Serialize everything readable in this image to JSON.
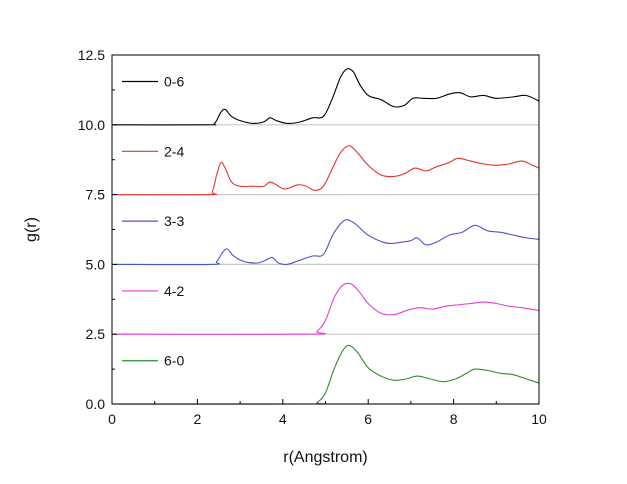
{
  "chart_data": {
    "type": "line",
    "title": "",
    "xlabel": "r(Angstrom)",
    "ylabel": "g(r)",
    "xlim": [
      0,
      10
    ],
    "ylim": [
      0,
      12.5
    ],
    "xticks": [
      0,
      2,
      4,
      6,
      8,
      10
    ],
    "xtick_labels": [
      "0",
      "2",
      "4",
      "6",
      "8",
      "10"
    ],
    "yticks": [
      0,
      2.5,
      5,
      7.5,
      10,
      12.5
    ],
    "ytick_labels": [
      "0.0",
      "2.5",
      "5.0",
      "7.5",
      "10.0",
      "12.5"
    ],
    "grid": false,
    "baselines": [
      10.0,
      7.5,
      5.0,
      2.5,
      0.0
    ],
    "baseline_color": "#c8c8c8",
    "legend_placement": "left, next to each curve",
    "series": [
      {
        "name": "0-6",
        "color": "#000000",
        "points": [
          [
            0,
            10.0
          ],
          [
            2.2,
            10.0
          ],
          [
            2.4,
            10.05
          ],
          [
            2.55,
            10.45
          ],
          [
            2.65,
            10.55
          ],
          [
            2.8,
            10.3
          ],
          [
            3.0,
            10.15
          ],
          [
            3.3,
            10.05
          ],
          [
            3.55,
            10.1
          ],
          [
            3.7,
            10.25
          ],
          [
            3.85,
            10.15
          ],
          [
            4.1,
            10.05
          ],
          [
            4.4,
            10.1
          ],
          [
            4.7,
            10.25
          ],
          [
            4.95,
            10.3
          ],
          [
            5.15,
            10.9
          ],
          [
            5.35,
            11.7
          ],
          [
            5.5,
            12.0
          ],
          [
            5.65,
            11.9
          ],
          [
            5.8,
            11.45
          ],
          [
            6.0,
            11.05
          ],
          [
            6.3,
            10.9
          ],
          [
            6.6,
            10.65
          ],
          [
            6.85,
            10.7
          ],
          [
            7.05,
            10.95
          ],
          [
            7.3,
            10.95
          ],
          [
            7.6,
            10.95
          ],
          [
            7.9,
            11.1
          ],
          [
            8.15,
            11.15
          ],
          [
            8.4,
            11.0
          ],
          [
            8.7,
            11.05
          ],
          [
            9.0,
            10.95
          ],
          [
            9.4,
            11.0
          ],
          [
            9.7,
            11.05
          ],
          [
            10.0,
            10.85
          ]
        ]
      },
      {
        "name": "2-4",
        "color": "#e8322b",
        "points": [
          [
            0,
            7.5
          ],
          [
            2.25,
            7.5
          ],
          [
            2.35,
            7.6
          ],
          [
            2.45,
            8.2
          ],
          [
            2.55,
            8.65
          ],
          [
            2.65,
            8.45
          ],
          [
            2.8,
            7.95
          ],
          [
            3.0,
            7.8
          ],
          [
            3.3,
            7.8
          ],
          [
            3.55,
            7.8
          ],
          [
            3.7,
            7.95
          ],
          [
            3.85,
            7.85
          ],
          [
            4.05,
            7.7
          ],
          [
            4.35,
            7.85
          ],
          [
            4.55,
            7.8
          ],
          [
            4.75,
            7.65
          ],
          [
            4.95,
            7.8
          ],
          [
            5.15,
            8.4
          ],
          [
            5.35,
            9.0
          ],
          [
            5.55,
            9.25
          ],
          [
            5.75,
            9.0
          ],
          [
            6.0,
            8.55
          ],
          [
            6.3,
            8.2
          ],
          [
            6.6,
            8.15
          ],
          [
            6.85,
            8.25
          ],
          [
            7.1,
            8.45
          ],
          [
            7.35,
            8.35
          ],
          [
            7.6,
            8.5
          ],
          [
            7.9,
            8.65
          ],
          [
            8.1,
            8.8
          ],
          [
            8.4,
            8.7
          ],
          [
            8.7,
            8.6
          ],
          [
            9.0,
            8.55
          ],
          [
            9.3,
            8.6
          ],
          [
            9.6,
            8.7
          ],
          [
            9.85,
            8.55
          ],
          [
            10.0,
            8.45
          ]
        ]
      },
      {
        "name": "3-3",
        "color": "#4a55c8",
        "points": [
          [
            0,
            5.0
          ],
          [
            2.3,
            5.0
          ],
          [
            2.45,
            5.1
          ],
          [
            2.6,
            5.45
          ],
          [
            2.7,
            5.55
          ],
          [
            2.85,
            5.3
          ],
          [
            3.1,
            5.1
          ],
          [
            3.4,
            5.05
          ],
          [
            3.6,
            5.15
          ],
          [
            3.75,
            5.25
          ],
          [
            3.9,
            5.05
          ],
          [
            4.1,
            5.0
          ],
          [
            4.4,
            5.15
          ],
          [
            4.7,
            5.3
          ],
          [
            4.95,
            5.35
          ],
          [
            5.15,
            6.0
          ],
          [
            5.35,
            6.45
          ],
          [
            5.5,
            6.6
          ],
          [
            5.7,
            6.45
          ],
          [
            5.95,
            6.1
          ],
          [
            6.25,
            5.85
          ],
          [
            6.5,
            5.75
          ],
          [
            6.8,
            5.8
          ],
          [
            7.0,
            5.85
          ],
          [
            7.15,
            5.95
          ],
          [
            7.35,
            5.7
          ],
          [
            7.6,
            5.8
          ],
          [
            7.9,
            6.05
          ],
          [
            8.2,
            6.15
          ],
          [
            8.5,
            6.4
          ],
          [
            8.8,
            6.2
          ],
          [
            9.1,
            6.15
          ],
          [
            9.4,
            6.05
          ],
          [
            9.7,
            5.95
          ],
          [
            10.0,
            5.9
          ]
        ]
      },
      {
        "name": "4-2",
        "color": "#e040d0",
        "points": [
          [
            0,
            2.5
          ],
          [
            4.6,
            2.5
          ],
          [
            4.8,
            2.6
          ],
          [
            5.0,
            3.0
          ],
          [
            5.2,
            3.8
          ],
          [
            5.4,
            4.25
          ],
          [
            5.6,
            4.3
          ],
          [
            5.8,
            4.0
          ],
          [
            6.0,
            3.6
          ],
          [
            6.3,
            3.25
          ],
          [
            6.6,
            3.2
          ],
          [
            6.9,
            3.35
          ],
          [
            7.2,
            3.45
          ],
          [
            7.5,
            3.4
          ],
          [
            7.8,
            3.5
          ],
          [
            8.1,
            3.55
          ],
          [
            8.4,
            3.6
          ],
          [
            8.7,
            3.65
          ],
          [
            9.0,
            3.6
          ],
          [
            9.3,
            3.5
          ],
          [
            9.6,
            3.45
          ],
          [
            10.0,
            3.35
          ]
        ]
      },
      {
        "name": "6-0",
        "color": "#2d8c2d",
        "points": [
          [
            0,
            0.0
          ],
          [
            4.6,
            0.0
          ],
          [
            4.8,
            0.05
          ],
          [
            5.0,
            0.4
          ],
          [
            5.2,
            1.25
          ],
          [
            5.4,
            1.9
          ],
          [
            5.55,
            2.1
          ],
          [
            5.75,
            1.85
          ],
          [
            6.0,
            1.3
          ],
          [
            6.3,
            1.0
          ],
          [
            6.6,
            0.85
          ],
          [
            6.9,
            0.9
          ],
          [
            7.15,
            1.0
          ],
          [
            7.45,
            0.9
          ],
          [
            7.75,
            0.8
          ],
          [
            8.05,
            0.9
          ],
          [
            8.3,
            1.1
          ],
          [
            8.5,
            1.25
          ],
          [
            8.8,
            1.2
          ],
          [
            9.1,
            1.1
          ],
          [
            9.4,
            1.05
          ],
          [
            9.7,
            0.9
          ],
          [
            10.0,
            0.75
          ]
        ]
      }
    ]
  }
}
